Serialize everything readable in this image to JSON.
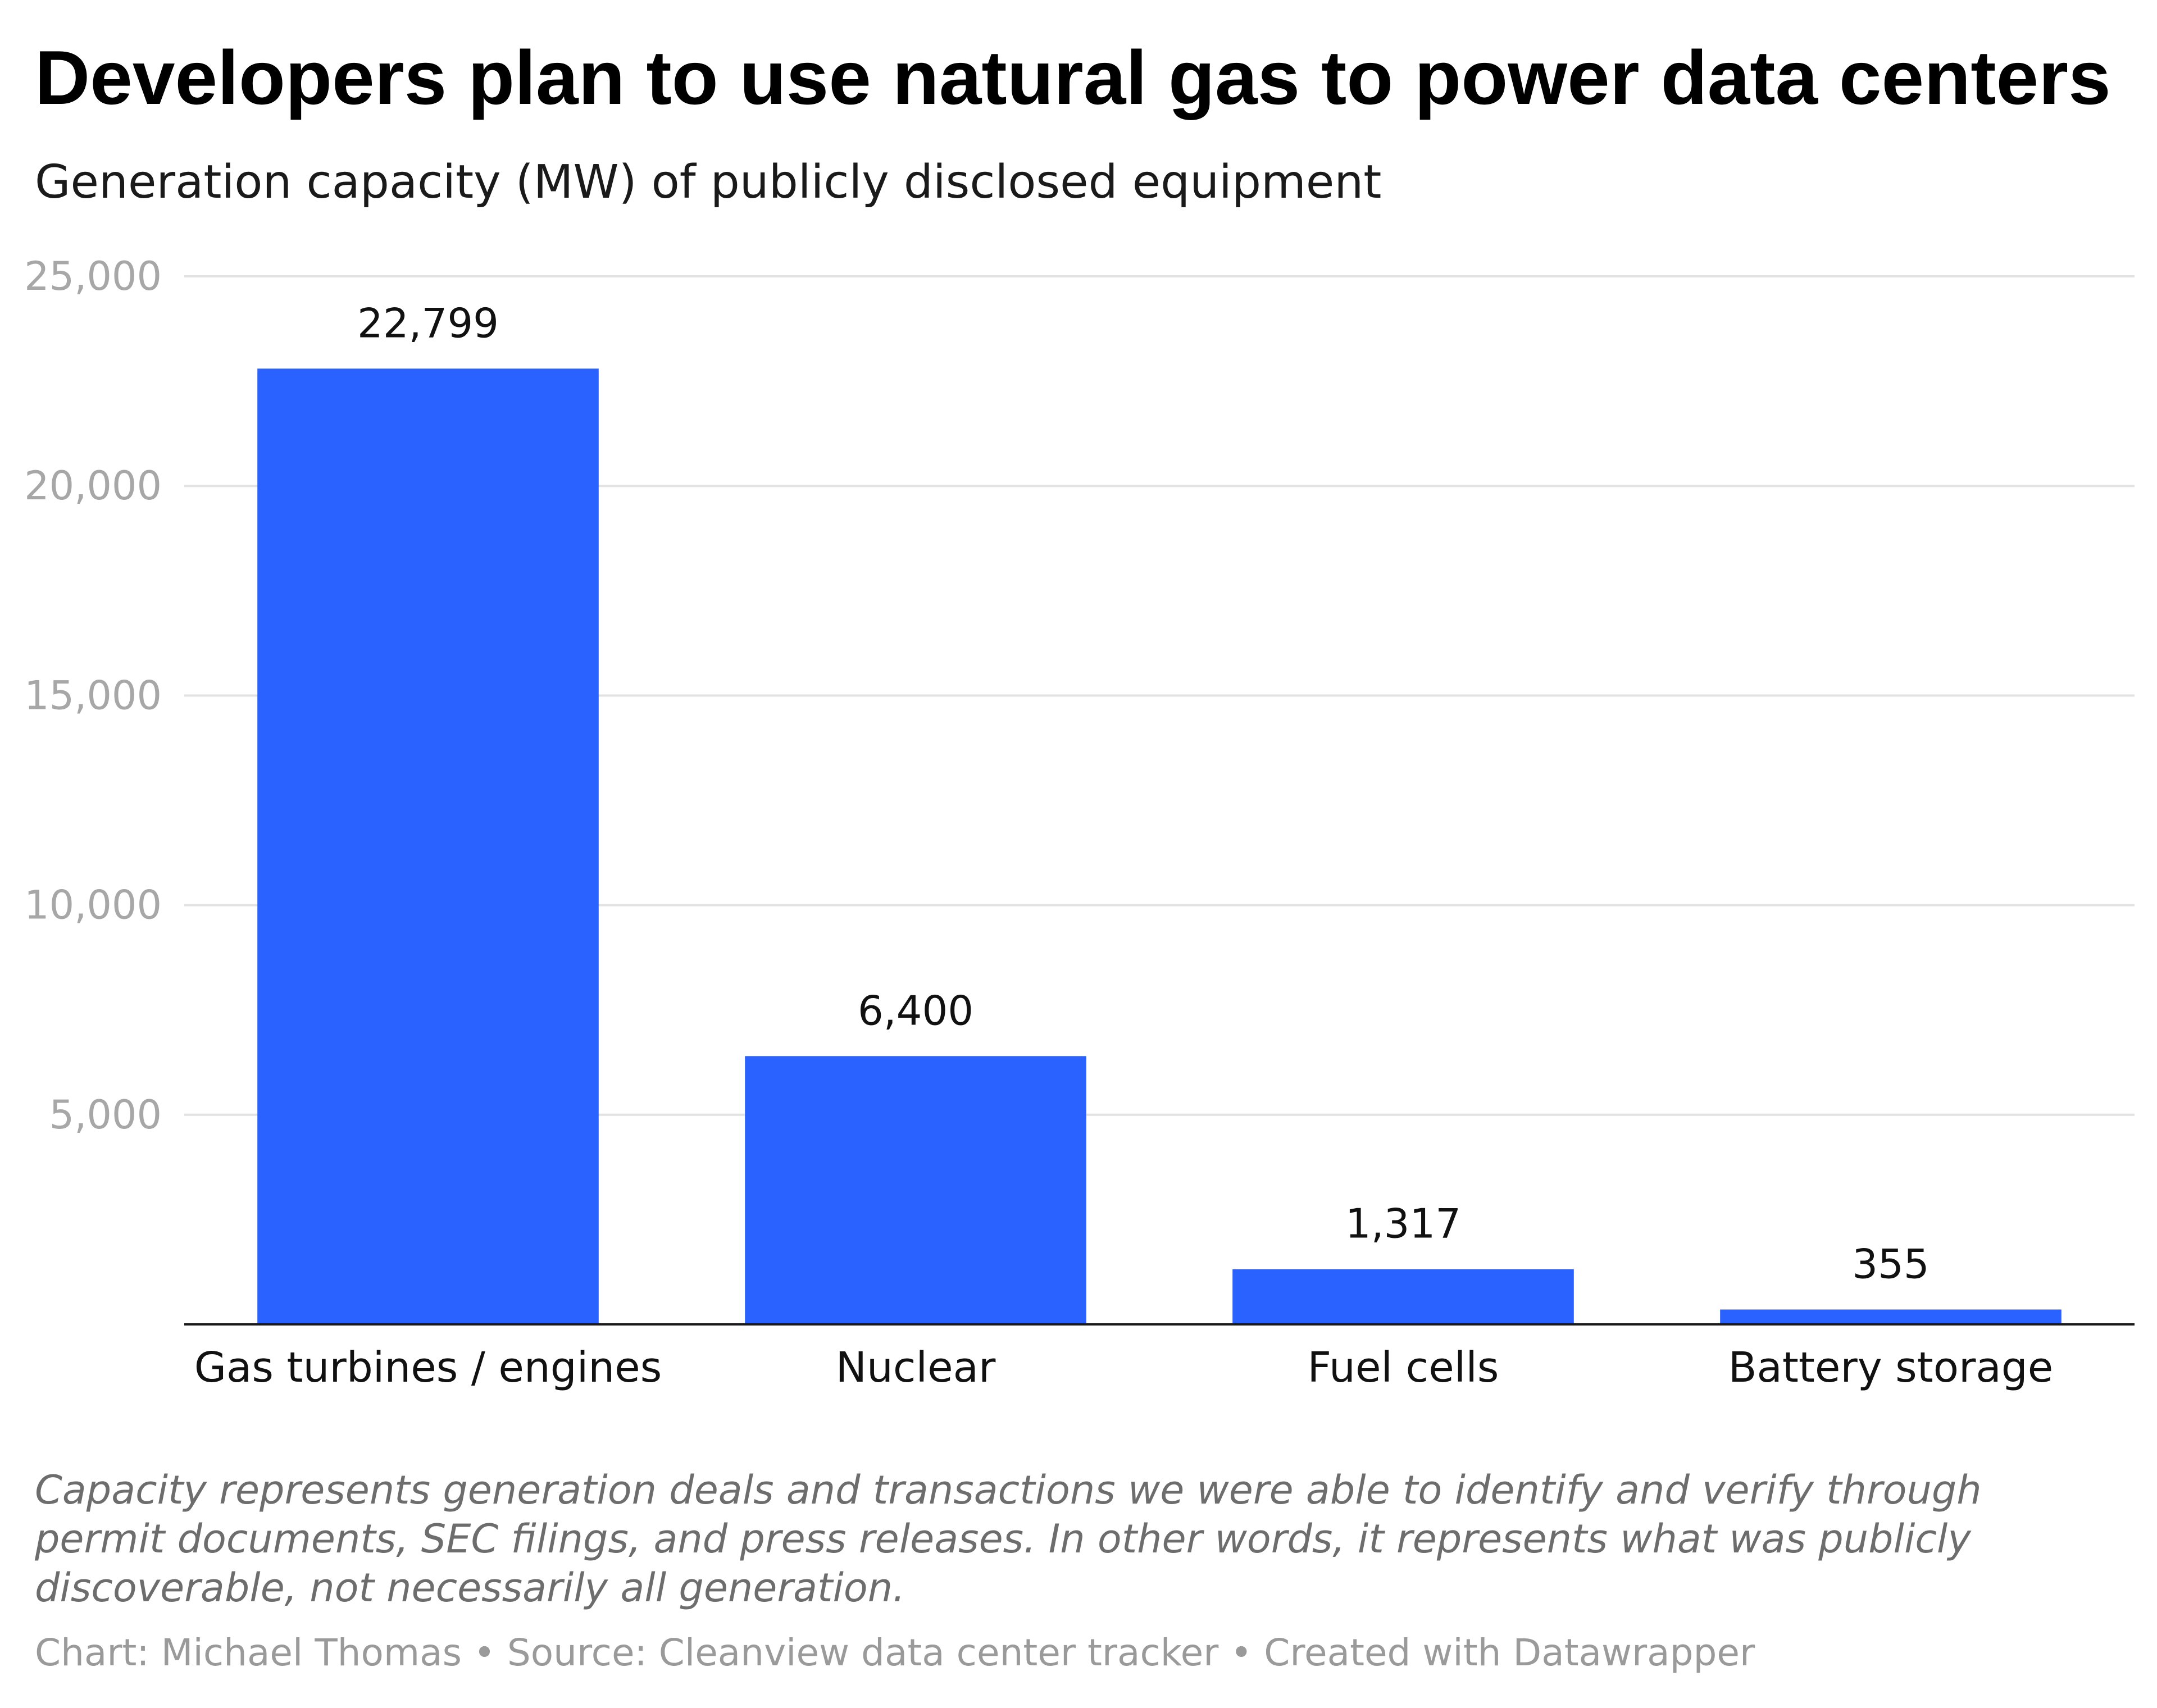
{
  "chart_data": {
    "type": "bar",
    "title": "Developers plan to use natural gas to power data centers",
    "subtitle": "Generation capacity (MW) of publicly disclosed equipment",
    "categories": [
      "Gas turbines / engines",
      "Nuclear",
      "Fuel cells",
      "Battery storage"
    ],
    "values": [
      22799,
      6400,
      1317,
      355
    ],
    "value_labels": [
      "22,799",
      "6,400",
      "1,317",
      "355"
    ],
    "ylim": [
      0,
      25000
    ],
    "yticks": [
      5000,
      10000,
      15000,
      20000,
      25000
    ],
    "ytick_labels": [
      "5,000",
      "10,000",
      "15,000",
      "20,000",
      "25,000"
    ],
    "grid": true,
    "bar_color": "#2962ff",
    "note": "Capacity represents generation deals and transactions we were able to identify and verify through permit documents, SEC filings, and press releases. In other words, it represents what was publicly discoverable, not necessarily all generation.",
    "credits": "Chart: Michael Thomas • Source: Cleanview data center tracker • Created with Datawrapper"
  }
}
